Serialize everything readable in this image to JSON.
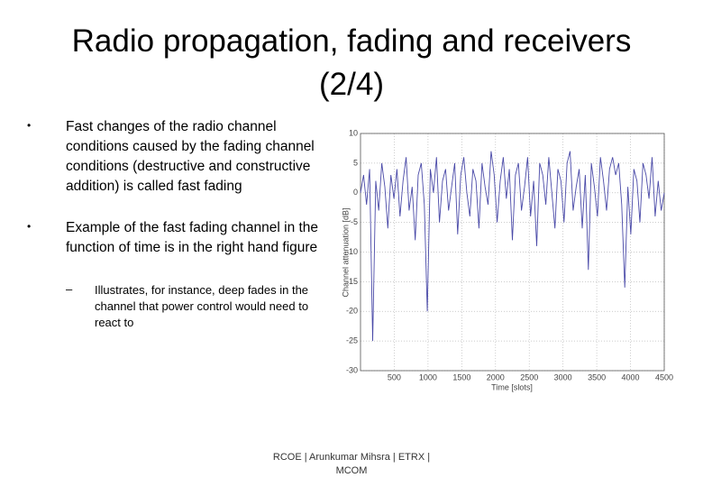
{
  "slide": {
    "title": [
      "Radio propagation, fading and receivers",
      "(2/4)"
    ],
    "bullets": [
      "Fast changes of the radio channel conditions caused by the fading channel conditions (destructive and constructive addition) is called fast fading",
      "Example of the fast fading channel in the function of time is in the right hand figure"
    ],
    "sub_bullets": [
      "Illustrates, for instance, deep fades in the channel that power control would need to react to"
    ],
    "footer": [
      "RCOE | Arunkumar Mihsra | ETRX |",
      "MCOM"
    ]
  },
  "chart_data": {
    "type": "line",
    "xlabel": "Time [slots]",
    "ylabel": "Channel attenuation [dB]",
    "color": "#4a4aa8",
    "grid": true,
    "xlim": [
      0,
      4500
    ],
    "xticks": [
      500,
      1000,
      1500,
      2000,
      2500,
      3000,
      3500,
      4000,
      4500
    ],
    "ylim": [
      -30,
      10
    ],
    "yticks": [
      -30,
      -25,
      -20,
      -15,
      -10,
      -5,
      0,
      5,
      10
    ],
    "x": [
      0,
      45,
      90,
      135,
      180,
      225,
      270,
      315,
      360,
      405,
      450,
      495,
      540,
      585,
      630,
      675,
      720,
      765,
      810,
      855,
      900,
      945,
      990,
      1035,
      1080,
      1125,
      1170,
      1215,
      1260,
      1305,
      1350,
      1395,
      1440,
      1485,
      1530,
      1575,
      1620,
      1665,
      1710,
      1755,
      1800,
      1845,
      1890,
      1935,
      1980,
      2025,
      2070,
      2115,
      2160,
      2205,
      2250,
      2295,
      2340,
      2385,
      2430,
      2475,
      2520,
      2565,
      2610,
      2655,
      2700,
      2745,
      2790,
      2835,
      2880,
      2925,
      2970,
      3015,
      3060,
      3105,
      3150,
      3195,
      3240,
      3285,
      3330,
      3375,
      3420,
      3465,
      3510,
      3555,
      3600,
      3645,
      3690,
      3735,
      3780,
      3825,
      3870,
      3915,
      3960,
      4005,
      4050,
      4095,
      4140,
      4185,
      4230,
      4275,
      4320,
      4365,
      4410,
      4455,
      4500
    ],
    "values": [
      0,
      3,
      -2,
      4,
      -25,
      2,
      -3,
      5,
      1,
      -6,
      3,
      -1,
      4,
      -4,
      2,
      6,
      -3,
      1,
      -8,
      3,
      5,
      -2,
      -20,
      4,
      0,
      6,
      -5,
      2,
      4,
      -3,
      1,
      5,
      -7,
      3,
      6,
      0,
      -4,
      4,
      2,
      -6,
      5,
      1,
      -2,
      7,
      3,
      -5,
      2,
      6,
      -1,
      4,
      -8,
      3,
      5,
      -3,
      1,
      6,
      -4,
      2,
      -9,
      5,
      3,
      -2,
      6,
      0,
      -6,
      4,
      2,
      -5,
      5,
      7,
      -3,
      1,
      4,
      -6,
      3,
      -13,
      5,
      1,
      -4,
      6,
      2,
      -3,
      4,
      6,
      3,
      5,
      -2,
      -16,
      1,
      -7,
      4,
      2,
      -5,
      5,
      3,
      -1,
      6,
      -4,
      2,
      -3,
      0
    ]
  }
}
